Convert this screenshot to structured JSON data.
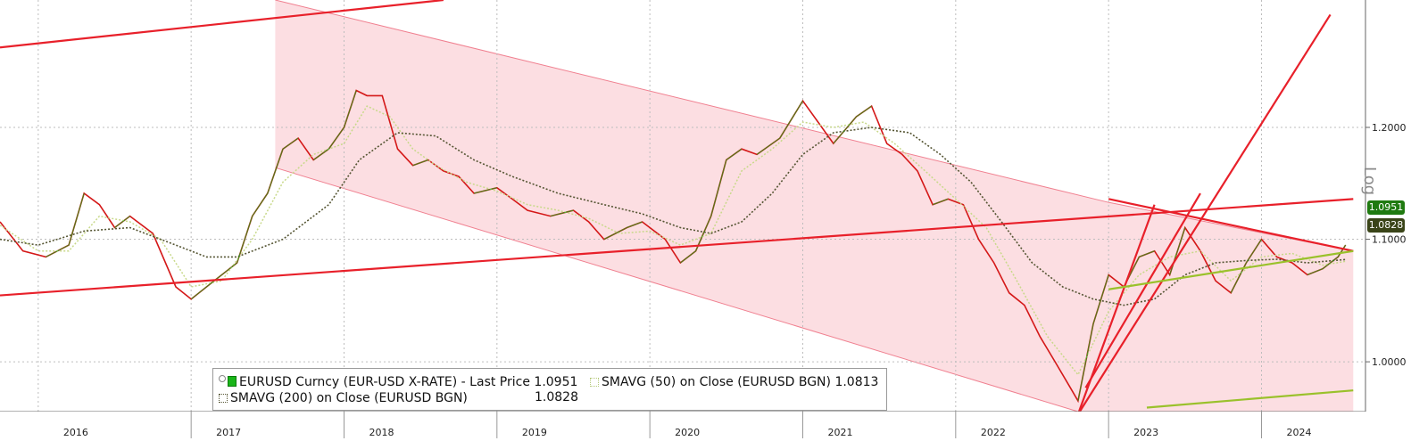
{
  "chart_data": {
    "type": "line",
    "scale": "log",
    "y_ticks": [
      "1.2000",
      "1.1000",
      "1.0000"
    ],
    "y_tick_values": [
      1.2,
      1.1,
      1.0
    ],
    "x_ticks": [
      "2016",
      "2017",
      "2018",
      "2019",
      "2020",
      "2021",
      "2022",
      "2023",
      "2024"
    ],
    "x_tick_values": [
      2016.0,
      2017.0,
      2018.0,
      2019.0,
      2020.0,
      2021.0,
      2022.0,
      2023.0,
      2024.0
    ],
    "scale_label": "Log",
    "series": [
      {
        "name": "EURUSD Curncy (EUR-USD X-RATE) - Last Price",
        "color": "#d41818",
        "points": [
          [
            2015.75,
            1.115
          ],
          [
            2015.9,
            1.09
          ],
          [
            2016.05,
            1.085
          ],
          [
            2016.2,
            1.095
          ],
          [
            2016.3,
            1.14
          ],
          [
            2016.4,
            1.13
          ],
          [
            2016.5,
            1.11
          ],
          [
            2016.6,
            1.12
          ],
          [
            2016.75,
            1.105
          ],
          [
            2016.9,
            1.06
          ],
          [
            2017.0,
            1.05
          ],
          [
            2017.15,
            1.065
          ],
          [
            2017.3,
            1.08
          ],
          [
            2017.4,
            1.12
          ],
          [
            2017.5,
            1.14
          ],
          [
            2017.6,
            1.18
          ],
          [
            2017.7,
            1.19
          ],
          [
            2017.8,
            1.17
          ],
          [
            2017.9,
            1.18
          ],
          [
            2018.0,
            1.2
          ],
          [
            2018.08,
            1.235
          ],
          [
            2018.15,
            1.23
          ],
          [
            2018.25,
            1.23
          ],
          [
            2018.35,
            1.18
          ],
          [
            2018.45,
            1.165
          ],
          [
            2018.55,
            1.17
          ],
          [
            2018.65,
            1.16
          ],
          [
            2018.75,
            1.155
          ],
          [
            2018.85,
            1.14
          ],
          [
            2019.0,
            1.145
          ],
          [
            2019.1,
            1.135
          ],
          [
            2019.2,
            1.125
          ],
          [
            2019.35,
            1.12
          ],
          [
            2019.5,
            1.125
          ],
          [
            2019.6,
            1.115
          ],
          [
            2019.7,
            1.1
          ],
          [
            2019.85,
            1.11
          ],
          [
            2019.95,
            1.115
          ],
          [
            2020.1,
            1.1
          ],
          [
            2020.2,
            1.08
          ],
          [
            2020.3,
            1.09
          ],
          [
            2020.4,
            1.12
          ],
          [
            2020.5,
            1.17
          ],
          [
            2020.6,
            1.18
          ],
          [
            2020.7,
            1.175
          ],
          [
            2020.85,
            1.19
          ],
          [
            2021.0,
            1.225
          ],
          [
            2021.1,
            1.205
          ],
          [
            2021.2,
            1.185
          ],
          [
            2021.35,
            1.21
          ],
          [
            2021.45,
            1.22
          ],
          [
            2021.55,
            1.185
          ],
          [
            2021.65,
            1.175
          ],
          [
            2021.75,
            1.16
          ],
          [
            2021.85,
            1.13
          ],
          [
            2021.95,
            1.135
          ],
          [
            2022.05,
            1.13
          ],
          [
            2022.15,
            1.1
          ],
          [
            2022.25,
            1.08
          ],
          [
            2022.35,
            1.055
          ],
          [
            2022.45,
            1.045
          ],
          [
            2022.55,
            1.02
          ],
          [
            2022.65,
            1.0
          ],
          [
            2022.75,
            0.98
          ],
          [
            2022.8,
            0.97
          ],
          [
            2022.9,
            1.03
          ],
          [
            2023.0,
            1.07
          ],
          [
            2023.1,
            1.06
          ],
          [
            2023.2,
            1.085
          ],
          [
            2023.3,
            1.09
          ],
          [
            2023.4,
            1.07
          ],
          [
            2023.5,
            1.11
          ],
          [
            2023.6,
            1.09
          ],
          [
            2023.7,
            1.065
          ],
          [
            2023.8,
            1.055
          ],
          [
            2023.9,
            1.08
          ],
          [
            2024.0,
            1.1
          ],
          [
            2024.1,
            1.085
          ],
          [
            2024.2,
            1.08
          ],
          [
            2024.3,
            1.07
          ],
          [
            2024.4,
            1.075
          ],
          [
            2024.5,
            1.085
          ],
          [
            2024.55,
            1.0951
          ]
        ],
        "last": "1.0951"
      },
      {
        "name": "SMAVG (50)  on Close (EURUSD BGN)",
        "color": "#c8d98a",
        "points": [
          [
            2015.75,
            1.112
          ],
          [
            2016.0,
            1.09
          ],
          [
            2016.2,
            1.09
          ],
          [
            2016.4,
            1.12
          ],
          [
            2016.6,
            1.115
          ],
          [
            2016.8,
            1.1
          ],
          [
            2017.0,
            1.06
          ],
          [
            2017.2,
            1.065
          ],
          [
            2017.4,
            1.1
          ],
          [
            2017.6,
            1.15
          ],
          [
            2017.8,
            1.175
          ],
          [
            2018.0,
            1.185
          ],
          [
            2018.15,
            1.22
          ],
          [
            2018.3,
            1.21
          ],
          [
            2018.45,
            1.18
          ],
          [
            2018.6,
            1.165
          ],
          [
            2018.8,
            1.15
          ],
          [
            2019.0,
            1.142
          ],
          [
            2019.2,
            1.13
          ],
          [
            2019.4,
            1.125
          ],
          [
            2019.6,
            1.118
          ],
          [
            2019.8,
            1.105
          ],
          [
            2020.0,
            1.107
          ],
          [
            2020.2,
            1.095
          ],
          [
            2020.4,
            1.105
          ],
          [
            2020.6,
            1.16
          ],
          [
            2020.8,
            1.18
          ],
          [
            2021.0,
            1.205
          ],
          [
            2021.2,
            1.2
          ],
          [
            2021.4,
            1.205
          ],
          [
            2021.6,
            1.185
          ],
          [
            2021.8,
            1.16
          ],
          [
            2022.0,
            1.135
          ],
          [
            2022.2,
            1.11
          ],
          [
            2022.4,
            1.065
          ],
          [
            2022.6,
            1.02
          ],
          [
            2022.8,
            0.99
          ],
          [
            2023.0,
            1.04
          ],
          [
            2023.2,
            1.07
          ],
          [
            2023.4,
            1.085
          ],
          [
            2023.6,
            1.09
          ],
          [
            2023.8,
            1.065
          ],
          [
            2024.0,
            1.085
          ],
          [
            2024.2,
            1.088
          ],
          [
            2024.4,
            1.078
          ],
          [
            2024.55,
            1.0813
          ]
        ],
        "last": "1.0813"
      },
      {
        "name": "SMAVG (200)  on Close (EURUSD BGN)",
        "color": "#555533",
        "points": [
          [
            2015.75,
            1.1
          ],
          [
            2016.0,
            1.095
          ],
          [
            2016.3,
            1.107
          ],
          [
            2016.6,
            1.11
          ],
          [
            2016.9,
            1.095
          ],
          [
            2017.1,
            1.085
          ],
          [
            2017.3,
            1.085
          ],
          [
            2017.6,
            1.1
          ],
          [
            2017.9,
            1.13
          ],
          [
            2018.1,
            1.17
          ],
          [
            2018.35,
            1.195
          ],
          [
            2018.6,
            1.192
          ],
          [
            2018.85,
            1.17
          ],
          [
            2019.1,
            1.155
          ],
          [
            2019.4,
            1.14
          ],
          [
            2019.7,
            1.13
          ],
          [
            2019.95,
            1.122
          ],
          [
            2020.2,
            1.11
          ],
          [
            2020.4,
            1.105
          ],
          [
            2020.6,
            1.115
          ],
          [
            2020.8,
            1.14
          ],
          [
            2021.0,
            1.175
          ],
          [
            2021.2,
            1.195
          ],
          [
            2021.45,
            1.2
          ],
          [
            2021.7,
            1.195
          ],
          [
            2021.9,
            1.175
          ],
          [
            2022.1,
            1.15
          ],
          [
            2022.3,
            1.115
          ],
          [
            2022.5,
            1.08
          ],
          [
            2022.7,
            1.06
          ],
          [
            2022.9,
            1.05
          ],
          [
            2023.1,
            1.045
          ],
          [
            2023.3,
            1.05
          ],
          [
            2023.5,
            1.07
          ],
          [
            2023.7,
            1.08
          ],
          [
            2023.9,
            1.082
          ],
          [
            2024.1,
            1.083
          ],
          [
            2024.3,
            1.08
          ],
          [
            2024.55,
            1.0828
          ]
        ],
        "last": "1.0828"
      }
    ],
    "channel_lines": [
      {
        "color": "#e8202a",
        "from": [
          2015.75,
          1.277
        ],
        "to": [
          2018.65,
          1.325
        ]
      },
      {
        "color": "#e8202a",
        "from": [
          2015.75,
          1.053
        ],
        "to": [
          2024.6,
          1.135
        ]
      },
      {
        "color": "#e8202a",
        "from": [
          2022.8,
          0.96
        ],
        "to": [
          2024.45,
          1.31
        ]
      },
      {
        "color": "#e8202a",
        "from": [
          2022.8,
          0.96
        ],
        "to": [
          2023.3,
          1.13
        ]
      },
      {
        "color": "#e8202a",
        "from": [
          2022.85,
          0.98
        ],
        "to": [
          2023.6,
          1.14
        ]
      },
      {
        "color": "#e8202a",
        "from": [
          2023.0,
          1.135
        ],
        "to": [
          2024.6,
          1.09
        ]
      },
      {
        "color": "#9ac12b",
        "from": [
          2023.0,
          1.058
        ],
        "to": [
          2024.6,
          1.09
        ]
      },
      {
        "color": "#9ac12b",
        "from": [
          2023.25,
          0.965
        ],
        "to": [
          2024.6,
          0.978
        ]
      }
    ],
    "shaded_channel": {
      "color": "#fbd3d8",
      "upper": [
        [
          2017.55,
          1.325
        ],
        [
          2023.0,
          1.132
        ],
        [
          2024.6,
          1.09
        ]
      ],
      "lower": [
        [
          2017.55,
          1.163
        ],
        [
          2022.8,
          0.962
        ],
        [
          2024.6,
          0.962
        ]
      ]
    }
  },
  "legend": {
    "price_label": "EURUSD Curncy (EUR-USD X-RATE) - Last Price",
    "price_value": "1.0951",
    "sma50_label": "SMAVG (50)  on Close (EURUSD BGN)",
    "sma50_value": "1.0813",
    "sma200_label": "SMAVG (200)  on Close (EURUSD BGN)",
    "sma200_value": "1.0828"
  },
  "badges": {
    "last": "1.0951",
    "sma": "1.0828"
  }
}
